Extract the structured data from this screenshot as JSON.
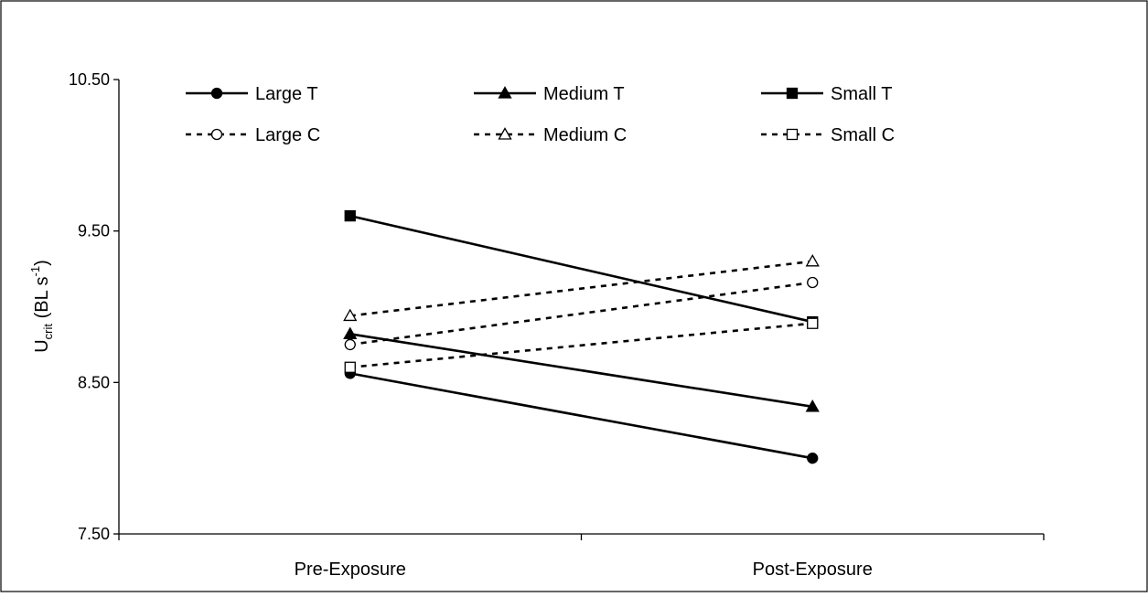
{
  "chart_data": {
    "type": "line",
    "title": "",
    "xlabel": "",
    "ylabel": {
      "main": "U",
      "subscript": "crit",
      "unit_open": " (BL s",
      "unit_superscript": "-1",
      "unit_close": ")"
    },
    "categories": [
      "Pre-Exposure",
      "Post-Exposure"
    ],
    "ylim": [
      7.5,
      10.5
    ],
    "yticks": [
      "7.50",
      "8.50",
      "9.50",
      "10.50"
    ],
    "ytick_values": [
      7.5,
      8.5,
      9.5,
      10.5
    ],
    "grid": false,
    "legend_placement": "top",
    "series": [
      {
        "name": "Large T",
        "values": [
          8.56,
          8.0
        ],
        "line": "solid",
        "marker": "circle",
        "filled": true
      },
      {
        "name": "Medium T",
        "values": [
          8.82,
          8.34
        ],
        "line": "solid",
        "marker": "triangle",
        "filled": true
      },
      {
        "name": "Small T",
        "values": [
          9.6,
          8.9
        ],
        "line": "solid",
        "marker": "square",
        "filled": true
      },
      {
        "name": "Large C",
        "values": [
          8.75,
          9.16
        ],
        "line": "dashed",
        "marker": "circle",
        "filled": false
      },
      {
        "name": "Medium C",
        "values": [
          8.94,
          9.3
        ],
        "line": "dashed",
        "marker": "triangle",
        "filled": false
      },
      {
        "name": "Small C",
        "values": [
          8.6,
          8.89
        ],
        "line": "dashed",
        "marker": "square",
        "filled": false
      }
    ],
    "colors": {
      "line": "#000000",
      "background": "#ffffff",
      "frame": "#000000"
    }
  }
}
